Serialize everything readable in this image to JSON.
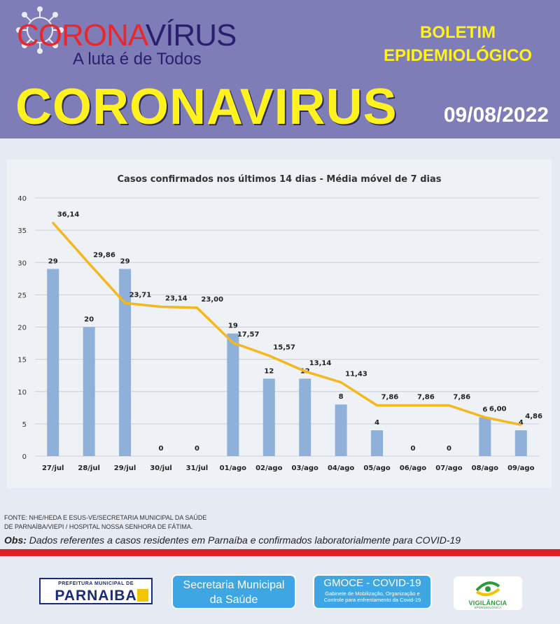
{
  "header": {
    "brand_red": "CORONA",
    "brand_dark": "VÍRUS",
    "tagline": "A luta é de Todos",
    "boletim_line1": "BOLETIM",
    "boletim_line2": "EPIDEMIOLÓGICO",
    "main_title": "CORONAVIRUS",
    "date": "09/08/2022"
  },
  "chart_data": {
    "type": "bar",
    "title": "Casos confirmados nos últimos 14 dias  - Média móvel de 7 dias",
    "categories": [
      "27/jul",
      "28/jul",
      "29/jul",
      "30/jul",
      "31/jul",
      "01/ago",
      "02/ago",
      "03/ago",
      "04/ago",
      "05/ago",
      "06/ago",
      "07/ago",
      "08/ago",
      "09/ago"
    ],
    "series": [
      {
        "type": "bar",
        "values": [
          29,
          20,
          29,
          0,
          0,
          19,
          12,
          12,
          8,
          4,
          0,
          0,
          6,
          4
        ],
        "labels": [
          "29",
          "20",
          "29",
          "0",
          "0",
          "19",
          "12",
          "12",
          "8",
          "4",
          "0",
          "0",
          "6",
          "4"
        ]
      },
      {
        "type": "line",
        "values": [
          36.14,
          29.86,
          23.71,
          23.14,
          23.0,
          17.57,
          15.57,
          13.14,
          11.43,
          7.86,
          7.86,
          7.86,
          6.0,
          4.86
        ],
        "labels": [
          "36,14",
          "29,86",
          "23,71",
          "23,14",
          "23,00",
          "17,57",
          "15,57",
          "13,14",
          "11,43",
          "7,86",
          "7,86",
          "7,86",
          "6,00",
          "4,86"
        ]
      }
    ],
    "ylim": [
      0,
      40
    ],
    "yticks": [
      0,
      5,
      10,
      15,
      20,
      25,
      30,
      35,
      40
    ],
    "grid": true,
    "colors": {
      "bar": "#8fb0d8",
      "line": "#f5b81c"
    }
  },
  "notes": {
    "source_line1": "FONTE: NHE/HEDA E ESUS-VE/SECRETARIA MUNICIPAL DA SAÚDE",
    "source_line2": "DE PARNAÍBA/VIEPI / HOSPITAL NOSSA SENHORA DE FÁTIMA.",
    "obs_label": "Obs:",
    "obs_text": "Dados referentes a casos residentes em Parnaíba e confirmados laboratorialmente para COVID-19"
  },
  "footer": {
    "prefeitura_top": "PREFEITURA MUNICIPAL DE",
    "prefeitura_name": "PARNAIBA",
    "secretaria_line1": "Secretaria Municipal",
    "secretaria_line2": "da Saúde",
    "gmoce_title": "GMOCE - COVID-19",
    "gmoce_desc": "Gabinete de Mobilização, Organização e Controle para enfrentamento da Covid-19",
    "vigilancia_label": "VIGILÂNCIA",
    "vigilancia_sub": "EPIDEMIOLÓGICA"
  },
  "icons": [
    "virus-icon",
    "vigilancia-logo-icon",
    "parnaiba-flag-icon"
  ]
}
